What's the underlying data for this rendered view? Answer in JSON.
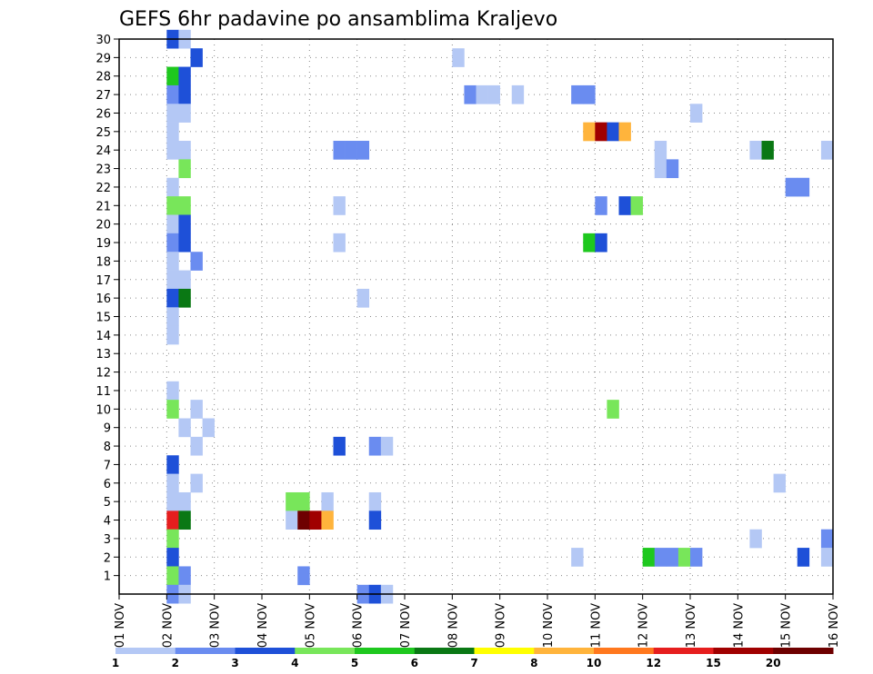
{
  "chart_data": {
    "type": "heatmap",
    "title": "GEFS 6hr padavine po ansamblima Kraljevo",
    "x_tick_labels": [
      "01 NOV",
      "02 NOV",
      "03 NOV",
      "04 NOV",
      "05 NOV",
      "06 NOV",
      "07 NOV",
      "08 NOV",
      "09 NOV",
      "10 NOV",
      "11 NOV",
      "12 NOV",
      "13 NOV",
      "14 NOV",
      "15 NOV",
      "16 NOV"
    ],
    "y_tick_labels": [
      "1",
      "2",
      "3",
      "4",
      "5",
      "6",
      "7",
      "8",
      "9",
      "10",
      "11",
      "12",
      "13",
      "14",
      "15",
      "16",
      "17",
      "18",
      "19",
      "20",
      "21",
      "22",
      "23",
      "24",
      "25",
      "26",
      "27",
      "28",
      "29",
      "30"
    ],
    "x_unit": "days since 01 NOV",
    "xlim": [
      0,
      15
    ],
    "ylim": [
      0,
      30
    ],
    "step": 0.25,
    "grid": true,
    "colorbar": {
      "labels": [
        "1",
        "2",
        "3",
        "4",
        "5",
        "6",
        "7",
        "8",
        "10",
        "12",
        "15",
        "20"
      ],
      "colors": [
        "#b4c8f5",
        "#6a8cf0",
        "#1e50d8",
        "#78e65a",
        "#1ec81e",
        "#0a7814",
        "#ffff00",
        "#ffb43c",
        "#ff781e",
        "#e61e1e",
        "#a00000",
        "#6e0000"
      ]
    },
    "cells": [
      [
        1.0,
        30,
        2
      ],
      [
        1.25,
        30,
        0
      ],
      [
        1.5,
        29,
        2
      ],
      [
        7.0,
        29,
        0
      ],
      [
        1.0,
        28,
        4
      ],
      [
        1.25,
        28,
        2
      ],
      [
        1.0,
        27,
        1
      ],
      [
        1.25,
        27,
        2
      ],
      [
        7.25,
        27,
        1
      ],
      [
        7.5,
        27,
        0
      ],
      [
        7.75,
        27,
        0
      ],
      [
        8.25,
        27,
        0
      ],
      [
        9.5,
        27,
        1
      ],
      [
        9.75,
        27,
        1
      ],
      [
        1.0,
        26,
        0
      ],
      [
        1.25,
        26,
        0
      ],
      [
        12.0,
        26,
        0
      ],
      [
        1.0,
        25,
        0
      ],
      [
        9.75,
        25,
        7
      ],
      [
        10.0,
        25,
        10
      ],
      [
        10.25,
        25,
        2
      ],
      [
        10.5,
        25,
        7
      ],
      [
        1.0,
        24,
        0
      ],
      [
        1.25,
        24,
        0
      ],
      [
        4.5,
        24,
        1
      ],
      [
        4.75,
        24,
        1
      ],
      [
        5.0,
        24,
        1
      ],
      [
        11.25,
        24,
        0
      ],
      [
        13.25,
        24,
        0
      ],
      [
        13.5,
        24,
        5
      ],
      [
        14.75,
        24,
        0
      ],
      [
        1.25,
        23,
        3
      ],
      [
        11.25,
        23,
        0
      ],
      [
        11.5,
        23,
        1
      ],
      [
        1.0,
        22,
        0
      ],
      [
        14.0,
        22,
        1
      ],
      [
        14.25,
        22,
        1
      ],
      [
        1.0,
        21,
        3
      ],
      [
        1.25,
        21,
        3
      ],
      [
        4.5,
        21,
        0
      ],
      [
        10.0,
        21,
        1
      ],
      [
        10.5,
        21,
        2
      ],
      [
        10.75,
        21,
        3
      ],
      [
        1.0,
        20,
        0
      ],
      [
        1.25,
        20,
        2
      ],
      [
        1.0,
        19,
        1
      ],
      [
        1.25,
        19,
        2
      ],
      [
        4.5,
        19,
        0
      ],
      [
        9.75,
        19,
        4
      ],
      [
        10.0,
        19,
        2
      ],
      [
        1.0,
        18,
        0
      ],
      [
        1.5,
        18,
        1
      ],
      [
        1.0,
        17,
        0
      ],
      [
        1.25,
        17,
        0
      ],
      [
        1.0,
        16,
        2
      ],
      [
        1.25,
        16,
        5
      ],
      [
        5.0,
        16,
        0
      ],
      [
        1.0,
        15,
        0
      ],
      [
        1.0,
        14,
        0
      ],
      [
        1.0,
        11,
        0
      ],
      [
        1.0,
        10,
        3
      ],
      [
        1.5,
        10,
        0
      ],
      [
        10.25,
        10,
        3
      ],
      [
        1.25,
        9,
        0
      ],
      [
        1.75,
        9,
        0
      ],
      [
        1.5,
        8,
        0
      ],
      [
        4.5,
        8,
        2
      ],
      [
        5.25,
        8,
        1
      ],
      [
        5.5,
        8,
        0
      ],
      [
        1.0,
        7,
        2
      ],
      [
        1.0,
        6,
        0
      ],
      [
        1.5,
        6,
        0
      ],
      [
        13.75,
        6,
        0
      ],
      [
        1.0,
        5,
        0
      ],
      [
        1.25,
        5,
        0
      ],
      [
        3.5,
        5,
        3
      ],
      [
        3.75,
        5,
        3
      ],
      [
        4.25,
        5,
        0
      ],
      [
        5.25,
        5,
        0
      ],
      [
        1.0,
        4,
        9
      ],
      [
        1.25,
        4,
        5
      ],
      [
        3.5,
        4,
        0
      ],
      [
        3.75,
        4,
        11
      ],
      [
        4.0,
        4,
        10
      ],
      [
        4.25,
        4,
        7
      ],
      [
        5.25,
        4,
        2
      ],
      [
        1.0,
        3,
        3
      ],
      [
        13.25,
        3,
        0
      ],
      [
        14.75,
        3,
        1
      ],
      [
        1.0,
        2,
        2
      ],
      [
        9.5,
        2,
        0
      ],
      [
        11.0,
        2,
        4
      ],
      [
        11.25,
        2,
        1
      ],
      [
        11.5,
        2,
        1
      ],
      [
        11.75,
        2,
        3
      ],
      [
        12.0,
        2,
        1
      ],
      [
        14.25,
        2,
        2
      ],
      [
        14.75,
        2,
        0
      ],
      [
        1.0,
        1,
        3
      ],
      [
        1.25,
        1,
        1
      ],
      [
        3.75,
        1,
        1
      ],
      [
        1.0,
        0,
        1
      ],
      [
        1.25,
        0,
        0
      ],
      [
        5.0,
        0,
        1
      ],
      [
        5.25,
        0,
        2
      ],
      [
        5.5,
        0,
        0
      ]
    ]
  }
}
